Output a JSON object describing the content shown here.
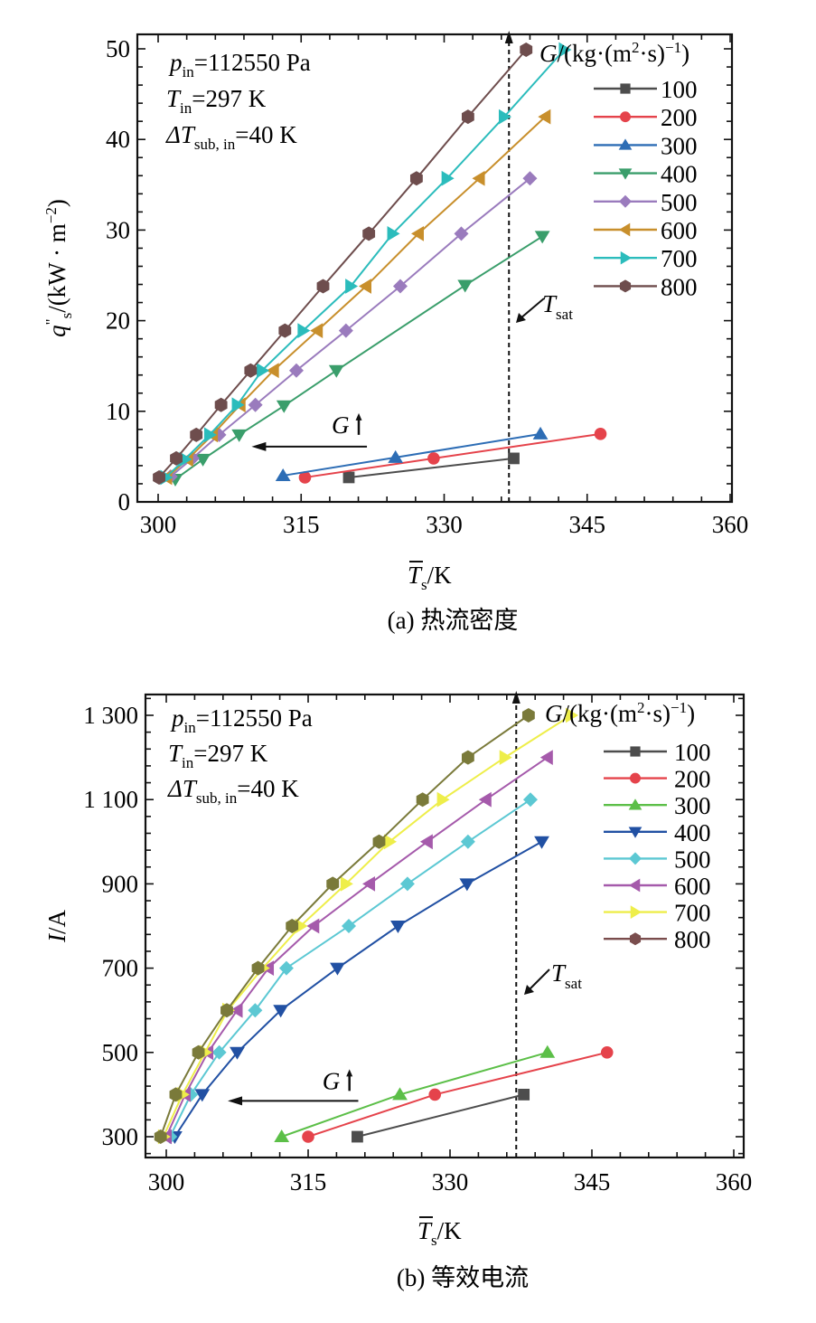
{
  "chart_data": [
    {
      "id": "a",
      "type": "line",
      "caption": "(a) 热流密度",
      "xlabel": {
        "main": "T",
        "sub": "s",
        "overbar": true,
        "unit": "/K"
      },
      "ylabel": {
        "main": "q",
        "prime": "\"",
        "sub": "s",
        "unit": "/(kW · m",
        "sup": "−2",
        "close": ")"
      },
      "xlim": [
        297.5,
        360
      ],
      "ylim": [
        0,
        50
      ],
      "xticks": [
        300,
        315,
        330,
        345,
        360
      ],
      "xtick_labels": [
        "300",
        "315",
        "330",
        "345",
        "360"
      ],
      "yticks": [
        0,
        10,
        20,
        30,
        40,
        50
      ],
      "ytick_labels": [
        "0",
        "10",
        "20",
        "30",
        "40",
        "50"
      ],
      "x_minor_step": 3,
      "y_minor_step": 2,
      "grid": false,
      "legend": {
        "title_main": "G",
        "title_unit": "/(kg·(m",
        "title_sup1": "2",
        "title_mid": "·s)",
        "title_sup2": "−1",
        "title_close": ")",
        "position": "top-right"
      },
      "conditions": [
        {
          "main": "p",
          "sub": "in",
          "rest": "=112550 Pa"
        },
        {
          "main": "T",
          "sub": "in",
          "rest": "=297 K"
        },
        {
          "main": "ΔT",
          "sub": "sub, in",
          "rest": "=40 K"
        }
      ],
      "tsat": {
        "x": 336.8,
        "label_main": "T",
        "label_sub": "sat"
      },
      "g_arrow": {
        "label": "G",
        "from": [
          321.9,
          6.1
        ],
        "to": [
          309.8,
          6.1
        ],
        "label_at": [
          318.2,
          7.6
        ]
      },
      "series": [
        {
          "name": "100",
          "color": "#4d4d4d",
          "marker": "square",
          "x": [
            320.0,
            337.3
          ],
          "y": [
            2.7,
            4.8
          ]
        },
        {
          "name": "200",
          "color": "#e5434b",
          "marker": "circle",
          "x": [
            315.4,
            328.9,
            346.4
          ],
          "y": [
            2.7,
            4.8,
            7.5
          ]
        },
        {
          "name": "300",
          "color": "#2d6db5",
          "marker": "triangle-up",
          "x": [
            313.1,
            324.9,
            340.1
          ],
          "y": [
            2.9,
            4.9,
            7.5
          ]
        },
        {
          "name": "400",
          "color": "#3a9e6b",
          "marker": "triangle-down",
          "x": [
            301.8,
            304.7,
            308.5,
            313.2,
            318.7,
            332.2,
            340.3
          ],
          "y": [
            2.5,
            4.7,
            7.4,
            10.6,
            14.5,
            23.9,
            29.3
          ]
        },
        {
          "name": "500",
          "color": "#9a7bbd",
          "marker": "diamond",
          "x": [
            301.3,
            303.6,
            306.4,
            310.2,
            314.5,
            319.7,
            325.4,
            331.8,
            339.0
          ],
          "y": [
            2.8,
            4.8,
            7.4,
            10.7,
            14.5,
            18.9,
            23.8,
            29.6,
            35.7
          ]
        },
        {
          "name": "600",
          "color": "#c88f2c",
          "marker": "triangle-left",
          "x": [
            300.9,
            303.1,
            305.7,
            308.6,
            312.1,
            316.7,
            321.8,
            327.3,
            333.7,
            340.6
          ],
          "y": [
            2.7,
            4.7,
            7.4,
            10.7,
            14.5,
            18.9,
            23.8,
            29.6,
            35.7,
            42.5
          ]
        },
        {
          "name": "700",
          "color": "#2bbcbc",
          "marker": "triangle-right",
          "x": [
            300.8,
            302.8,
            305.4,
            308.3,
            310.9,
            315.2,
            320.2,
            324.6,
            330.3,
            336.3,
            342.6
          ],
          "y": [
            2.7,
            4.7,
            7.4,
            10.7,
            14.5,
            18.9,
            23.8,
            29.6,
            35.7,
            42.5,
            49.9
          ]
        },
        {
          "name": "800",
          "color": "#6e4d4d",
          "marker": "hexagon",
          "x": [
            300.1,
            301.9,
            304.0,
            306.6,
            309.7,
            313.3,
            317.3,
            322.1,
            327.1,
            332.5,
            338.6
          ],
          "y": [
            2.7,
            4.8,
            7.4,
            10.7,
            14.5,
            18.9,
            23.8,
            29.6,
            35.7,
            42.5,
            49.9
          ]
        }
      ]
    },
    {
      "id": "b",
      "type": "line",
      "caption": "(b) 等效电流",
      "xlabel": {
        "main": "T",
        "sub": "s",
        "overbar": true,
        "unit": "/K"
      },
      "ylabel": {
        "main": "I",
        "unit": "/A"
      },
      "xlim": [
        297.8,
        360
      ],
      "ylim": [
        250,
        1340
      ],
      "xticks": [
        300,
        315,
        330,
        345,
        360
      ],
      "xtick_labels": [
        "300",
        "315",
        "330",
        "345",
        "360"
      ],
      "yticks": [
        300,
        500,
        700,
        900,
        1100,
        1300
      ],
      "ytick_labels": [
        "300",
        "500",
        "700",
        "900",
        "1 100",
        "1 300"
      ],
      "x_minor_step": 3,
      "y_minor_step": 40,
      "grid": false,
      "legend": {
        "title_main": "G",
        "title_unit": "/(kg·(m",
        "title_sup1": "2",
        "title_mid": "·s)",
        "title_sup2": "−1",
        "title_close": ")",
        "position": "top-right"
      },
      "conditions": [
        {
          "main": "p",
          "sub": "in",
          "rest": "=112550 Pa"
        },
        {
          "main": "T",
          "sub": "in",
          "rest": "=297 K"
        },
        {
          "main": "ΔT",
          "sub": "sub, in",
          "rest": "=40 K"
        }
      ],
      "tsat": {
        "x": 337.0,
        "label_main": "T",
        "label_sub": "sat"
      },
      "g_arrow": {
        "label": "G",
        "from": [
          320.3,
          385
        ],
        "to": [
          306.5,
          385
        ],
        "label_at": [
          316.5,
          413
        ]
      },
      "series": [
        {
          "name": "100",
          "color": "#4d4d4d",
          "marker": "square",
          "x": [
            320.2,
            337.8
          ],
          "y": [
            300,
            400
          ]
        },
        {
          "name": "200",
          "color": "#e5434b",
          "marker": "circle",
          "x": [
            315.0,
            328.4,
            346.6
          ],
          "y": [
            300,
            400,
            500
          ]
        },
        {
          "name": "300",
          "color": "#5cbf48",
          "marker": "triangle-up",
          "x": [
            312.2,
            324.7,
            340.3
          ],
          "y": [
            300,
            400,
            500
          ]
        },
        {
          "name": "400",
          "color": "#2150a3",
          "marker": "triangle-down",
          "x": [
            300.9,
            303.8,
            307.5,
            312.1,
            318.1,
            324.5,
            331.8,
            339.7
          ],
          "y": [
            300,
            400,
            500,
            600,
            700,
            800,
            900,
            1000
          ]
        },
        {
          "name": "500",
          "color": "#5cc8d3",
          "marker": "diamond",
          "x": [
            300.4,
            302.6,
            305.6,
            309.4,
            312.7,
            319.3,
            325.5,
            331.9,
            338.5
          ],
          "y": [
            300,
            400,
            500,
            600,
            700,
            800,
            900,
            1000,
            1100
          ]
        },
        {
          "name": "600",
          "color": "#a55aab",
          "marker": "triangle-left",
          "x": [
            300.0,
            302.0,
            304.4,
            307.5,
            310.8,
            315.6,
            321.5,
            327.6,
            333.8,
            340.3
          ],
          "y": [
            300,
            400,
            500,
            600,
            700,
            800,
            900,
            1000,
            1100,
            1200
          ]
        },
        {
          "name": "700",
          "color": "#eeee4a",
          "marker": "triangle-right",
          "x": [
            299.7,
            301.7,
            304.1,
            306.5,
            310.2,
            314.2,
            319.0,
            323.6,
            329.2,
            335.8,
            342.8
          ],
          "y": [
            300,
            400,
            500,
            600,
            700,
            800,
            900,
            1000,
            1100,
            1200,
            1300
          ]
        },
        {
          "name": "800",
          "color": "#7a7a3a",
          "legend_color": "#7a4d4d",
          "marker": "hexagon",
          "x": [
            299.4,
            301.0,
            303.4,
            306.4,
            309.7,
            313.3,
            317.6,
            322.5,
            327.1,
            331.9,
            338.3
          ],
          "y": [
            300,
            400,
            500,
            600,
            700,
            800,
            900,
            1000,
            1100,
            1200,
            1300
          ]
        }
      ]
    }
  ]
}
